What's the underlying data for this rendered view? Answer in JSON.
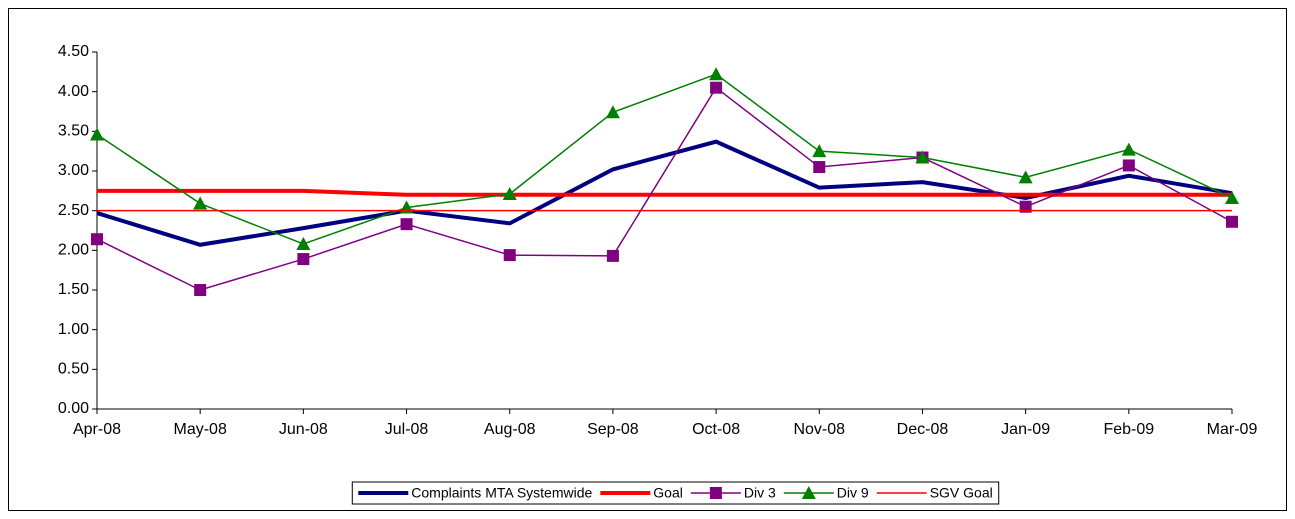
{
  "chart_data": {
    "type": "line",
    "categories": [
      "Apr-08",
      "May-08",
      "Jun-08",
      "Jul-08",
      "Aug-08",
      "Sep-08",
      "Oct-08",
      "Nov-08",
      "Dec-08",
      "Jan-09",
      "Feb-09",
      "Mar-09"
    ],
    "series": [
      {
        "name": "Complaints MTA Systemwide",
        "color": "#000080",
        "width": 4,
        "marker": null,
        "values": [
          2.47,
          2.07,
          2.28,
          2.5,
          2.34,
          3.02,
          3.37,
          2.79,
          2.86,
          2.66,
          2.94,
          2.72
        ]
      },
      {
        "name": "Goal",
        "color": "#ff0000",
        "width": 4,
        "marker": null,
        "values": [
          2.75,
          2.75,
          2.75,
          2.7,
          2.7,
          2.7,
          2.7,
          2.7,
          2.7,
          2.7,
          2.7,
          2.7
        ]
      },
      {
        "name": "Div 3",
        "color": "#800080",
        "width": 1.5,
        "marker": "square",
        "values": [
          2.14,
          1.5,
          1.89,
          2.33,
          1.94,
          1.93,
          4.05,
          3.05,
          3.17,
          2.55,
          3.07,
          2.36
        ]
      },
      {
        "name": "Div 9",
        "color": "#008000",
        "width": 1.5,
        "marker": "triangle",
        "values": [
          3.46,
          2.59,
          2.08,
          2.54,
          2.71,
          3.74,
          4.22,
          3.25,
          3.17,
          2.92,
          3.27,
          2.66
        ]
      },
      {
        "name": "SGV Goal",
        "color": "#ff0000",
        "width": 1.5,
        "marker": null,
        "values": [
          2.5,
          2.5,
          2.5,
          2.5,
          2.5,
          2.5,
          2.5,
          2.5,
          2.5,
          2.5,
          2.5,
          2.5
        ]
      }
    ],
    "ylim": [
      0,
      4.5
    ],
    "yticks": [
      {
        "value": 0,
        "label": "0.00"
      },
      {
        "value": 0.5,
        "label": "0.50"
      },
      {
        "value": 1,
        "label": "1.00"
      },
      {
        "value": 1.5,
        "label": "1.50"
      },
      {
        "value": 2,
        "label": "2.00"
      },
      {
        "value": 2.5,
        "label": "2.50"
      },
      {
        "value": 3,
        "label": "3.00"
      },
      {
        "value": 3.5,
        "label": "3.50"
      },
      {
        "value": 4,
        "label": "4.00"
      },
      {
        "value": 4.5,
        "label": "4.50"
      }
    ],
    "grid": false,
    "legend": "bottom"
  }
}
